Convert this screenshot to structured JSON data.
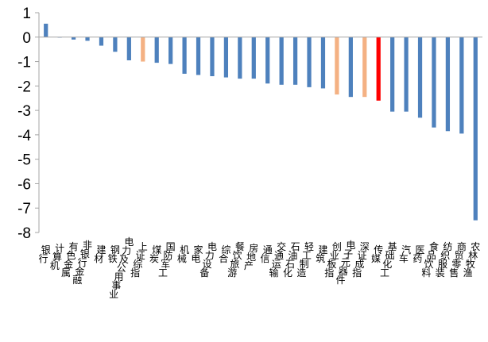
{
  "chart_data": {
    "type": "bar",
    "title": "",
    "xlabel": "",
    "ylabel": "",
    "ylim": [
      -8,
      1
    ],
    "yticks": [
      1,
      0,
      -1,
      -2,
      -3,
      -4,
      -5,
      -6,
      -7,
      -8
    ],
    "grid": false,
    "legend": "none",
    "colors": {
      "default": "#4E81BD",
      "highlight_light": "#F4B183",
      "highlight_strong": "#FF0000",
      "axis": "#A6A6A6"
    },
    "categories": [
      "银行",
      "计算机",
      "有色金属",
      "非银行金融",
      "建材",
      "钢铁",
      "电力及公用事业",
      "上证综指",
      "煤炭",
      "国防军工",
      "机械",
      "家电",
      "电力设备",
      "综合",
      "餐饮旅游",
      "房地产",
      "通信",
      "交通运输",
      "石油石化",
      "轻工制造",
      "建筑",
      "创业板指",
      "电子元器件",
      "深证成指",
      "传媒",
      "基础化工",
      "汽车",
      "医药",
      "食品饮料",
      "纺织服装",
      "商贸零售",
      "农林牧渔"
    ],
    "values": [
      0.55,
      -0.02,
      -0.1,
      -0.15,
      -0.35,
      -0.6,
      -0.95,
      -1.0,
      -1.05,
      -1.1,
      -1.5,
      -1.55,
      -1.6,
      -1.65,
      -1.7,
      -1.7,
      -1.9,
      -1.95,
      -1.95,
      -2.05,
      -2.1,
      -2.35,
      -2.45,
      -2.45,
      -2.6,
      -3.05,
      -3.05,
      -3.3,
      -3.7,
      -3.85,
      -3.95,
      -7.5
    ],
    "bar_color_keys": [
      "default",
      "default",
      "default",
      "default",
      "default",
      "default",
      "default",
      "highlight_light",
      "default",
      "default",
      "default",
      "default",
      "default",
      "default",
      "default",
      "default",
      "default",
      "default",
      "default",
      "default",
      "default",
      "highlight_light",
      "default",
      "highlight_light",
      "highlight_strong",
      "default",
      "default",
      "default",
      "default",
      "default",
      "default",
      "default"
    ]
  }
}
